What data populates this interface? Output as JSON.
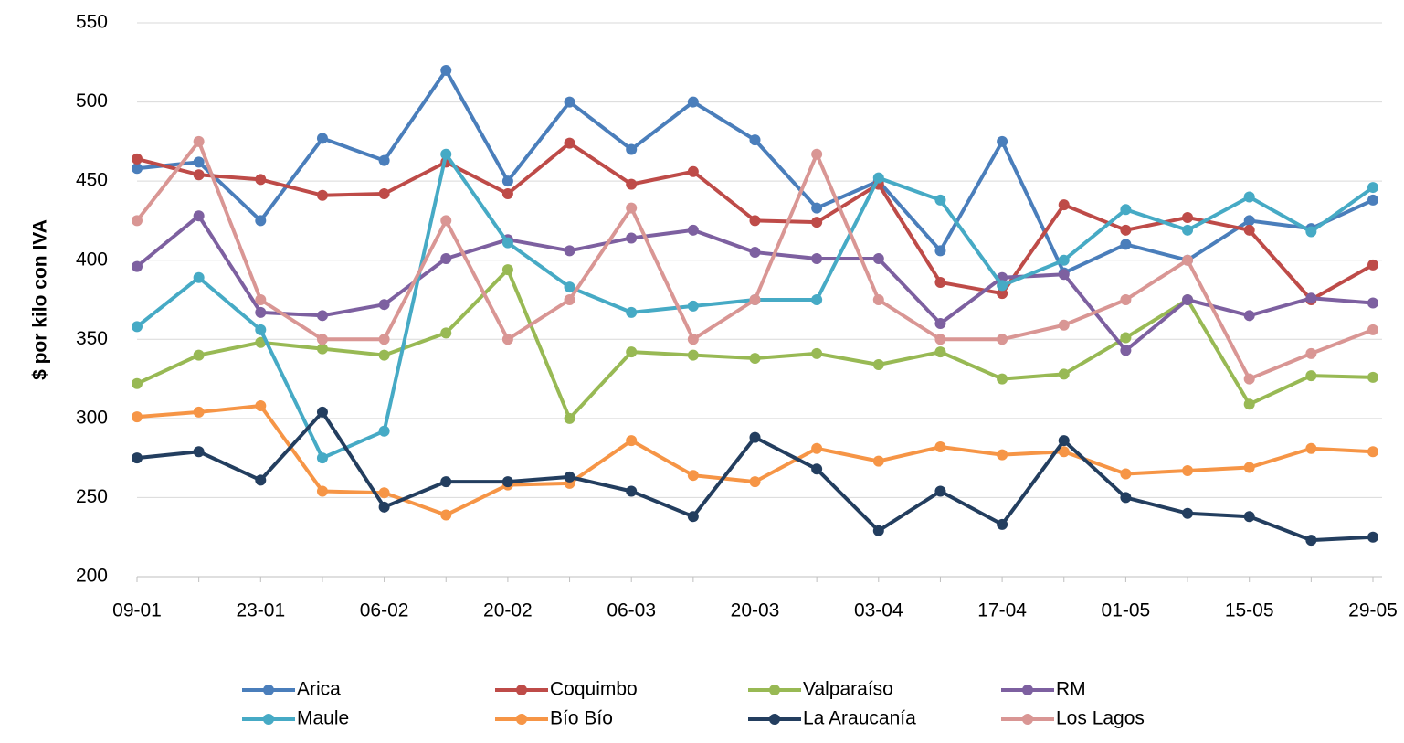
{
  "chart_data": {
    "type": "line",
    "y_label": "$ por kilo con IVA",
    "categories": [
      "09-01",
      null,
      "23-01",
      null,
      "06-02",
      null,
      "20-02",
      null,
      "06-03",
      null,
      "20-03",
      null,
      "03-04",
      null,
      "17-04",
      null,
      "01-05",
      null,
      "15-05",
      null,
      "29-05"
    ],
    "ylim": [
      200,
      550
    ],
    "yticks": [
      200,
      250,
      300,
      350,
      400,
      450,
      500,
      550
    ],
    "grid": true,
    "legend": "bottom",
    "series": [
      {
        "name": "Arica",
        "color": "#4a7ebb",
        "values": [
          458,
          462,
          425,
          477,
          463,
          520,
          450,
          500,
          470,
          500,
          476,
          433,
          450,
          406,
          475,
          392,
          410,
          400,
          425,
          420,
          438
        ]
      },
      {
        "name": "Coquimbo",
        "color": "#be4b48",
        "values": [
          464,
          454,
          451,
          441,
          442,
          462,
          442,
          474,
          448,
          456,
          425,
          424,
          448,
          386,
          379,
          435,
          419,
          427,
          419,
          375,
          397
        ]
      },
      {
        "name": "Valparaíso",
        "color": "#98b954",
        "values": [
          322,
          340,
          348,
          344,
          340,
          354,
          394,
          300,
          342,
          340,
          338,
          341,
          334,
          342,
          325,
          328,
          351,
          375,
          309,
          327,
          326
        ]
      },
      {
        "name": "RM",
        "color": "#7d60a0",
        "values": [
          396,
          428,
          367,
          365,
          372,
          401,
          413,
          406,
          414,
          419,
          405,
          401,
          401,
          360,
          389,
          391,
          343,
          375,
          365,
          376,
          373
        ]
      },
      {
        "name": "Maule",
        "color": "#46aac5",
        "values": [
          358,
          389,
          356,
          275,
          292,
          467,
          411,
          383,
          367,
          371,
          375,
          375,
          452,
          438,
          384,
          400,
          432,
          419,
          440,
          418,
          446
        ]
      },
      {
        "name": "Bío Bío",
        "color": "#f69546",
        "values": [
          301,
          304,
          308,
          254,
          253,
          239,
          258,
          259,
          286,
          264,
          260,
          281,
          273,
          282,
          277,
          279,
          265,
          267,
          269,
          281,
          279
        ]
      },
      {
        "name": "La Araucanía",
        "color": "#233e5f",
        "values": [
          275,
          279,
          261,
          304,
          244,
          260,
          260,
          263,
          254,
          238,
          288,
          268,
          229,
          254,
          233,
          286,
          250,
          240,
          238,
          223,
          225
        ]
      },
      {
        "name": "Los Lagos",
        "color": "#d99694",
        "values": [
          425,
          475,
          375,
          350,
          350,
          425,
          350,
          375,
          433,
          350,
          375,
          467,
          375,
          350,
          350,
          359,
          375,
          400,
          325,
          341,
          356
        ]
      }
    ]
  }
}
